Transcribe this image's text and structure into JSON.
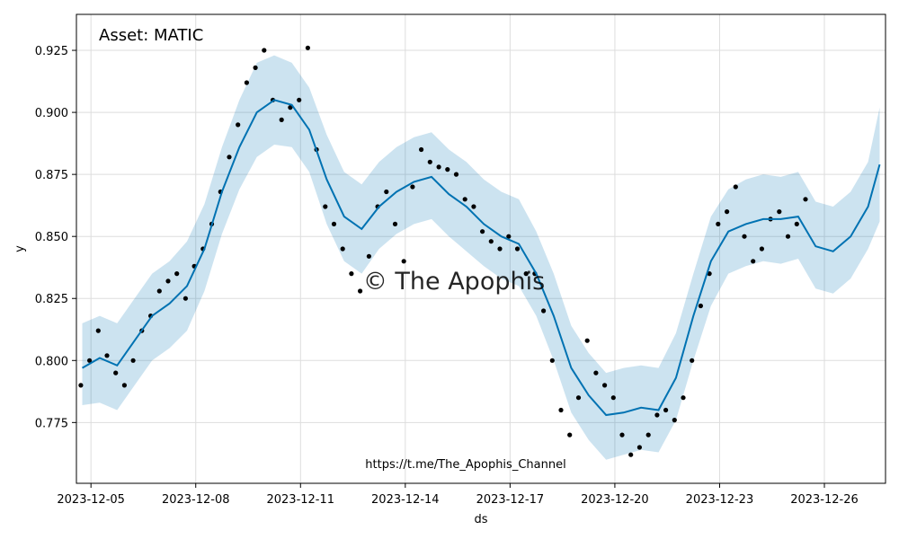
{
  "chart_data": {
    "type": "line",
    "title": "",
    "xlabel": "ds",
    "ylabel": "y",
    "annotation": "Asset: MATIC",
    "watermark": "© The Apophis",
    "footer_url": "https://t.me/The_Apophis_Channel",
    "x_range": [
      "2023-12-04T14:00",
      "2023-12-27T18:00"
    ],
    "ylim": [
      0.7505,
      0.9395
    ],
    "x_ticks": [
      {
        "label": "2023-12-05",
        "date": "2023-12-05"
      },
      {
        "label": "2023-12-08",
        "date": "2023-12-08"
      },
      {
        "label": "2023-12-11",
        "date": "2023-12-11"
      },
      {
        "label": "2023-12-14",
        "date": "2023-12-14"
      },
      {
        "label": "2023-12-17",
        "date": "2023-12-17"
      },
      {
        "label": "2023-12-20",
        "date": "2023-12-20"
      },
      {
        "label": "2023-12-23",
        "date": "2023-12-23"
      },
      {
        "label": "2023-12-26",
        "date": "2023-12-26"
      }
    ],
    "y_ticks": [
      {
        "label": "0.775",
        "value": 0.775
      },
      {
        "label": "0.800",
        "value": 0.8
      },
      {
        "label": "0.825",
        "value": 0.825
      },
      {
        "label": "0.850",
        "value": 0.85
      },
      {
        "label": "0.875",
        "value": 0.875
      },
      {
        "label": "0.900",
        "value": 0.9
      },
      {
        "label": "0.925",
        "value": 0.925
      }
    ],
    "grid": true,
    "colors": {
      "forecast_line": "#0072B2",
      "interval_fill": "#0072B2",
      "observed_points": "#000000",
      "grid": "#dddddd"
    },
    "series": [
      {
        "role": "forecast yhat",
        "x": [
          "2023-12-04T18:00",
          "2023-12-05T06:00",
          "2023-12-05T18:00",
          "2023-12-06T06:00",
          "2023-12-06T18:00",
          "2023-12-07T06:00",
          "2023-12-07T18:00",
          "2023-12-08T06:00",
          "2023-12-08T18:00",
          "2023-12-09T06:00",
          "2023-12-09T18:00",
          "2023-12-10T06:00",
          "2023-12-10T18:00",
          "2023-12-11T06:00",
          "2023-12-11T18:00",
          "2023-12-12T06:00",
          "2023-12-12T18:00",
          "2023-12-13T06:00",
          "2023-12-13T18:00",
          "2023-12-14T06:00",
          "2023-12-14T18:00",
          "2023-12-15T06:00",
          "2023-12-15T18:00",
          "2023-12-16T06:00",
          "2023-12-16T18:00",
          "2023-12-17T06:00",
          "2023-12-17T18:00",
          "2023-12-18T06:00",
          "2023-12-18T18:00",
          "2023-12-19T06:00",
          "2023-12-19T18:00",
          "2023-12-20T06:00",
          "2023-12-20T18:00",
          "2023-12-21T06:00",
          "2023-12-21T18:00",
          "2023-12-22T06:00",
          "2023-12-22T18:00",
          "2023-12-23T06:00",
          "2023-12-23T18:00",
          "2023-12-24T06:00",
          "2023-12-24T18:00",
          "2023-12-25T06:00",
          "2023-12-25T18:00",
          "2023-12-26T06:00",
          "2023-12-26T18:00",
          "2023-12-27T06:00",
          "2023-12-27T14:00"
        ],
        "y": [
          0.797,
          0.801,
          0.798,
          0.808,
          0.818,
          0.823,
          0.83,
          0.845,
          0.868,
          0.886,
          0.9,
          0.905,
          0.903,
          0.893,
          0.873,
          0.858,
          0.853,
          0.862,
          0.868,
          0.872,
          0.874,
          0.867,
          0.862,
          0.855,
          0.85,
          0.847,
          0.835,
          0.818,
          0.797,
          0.786,
          0.778,
          0.779,
          0.781,
          0.78,
          0.793,
          0.818,
          0.84,
          0.852,
          0.855,
          0.857,
          0.857,
          0.858,
          0.846,
          0.844,
          0.85,
          0.862,
          0.879
        ]
      },
      {
        "role": "uncertainty upper",
        "x": [
          "2023-12-04T18:00",
          "2023-12-05T06:00",
          "2023-12-05T18:00",
          "2023-12-06T06:00",
          "2023-12-06T18:00",
          "2023-12-07T06:00",
          "2023-12-07T18:00",
          "2023-12-08T06:00",
          "2023-12-08T18:00",
          "2023-12-09T06:00",
          "2023-12-09T18:00",
          "2023-12-10T06:00",
          "2023-12-10T18:00",
          "2023-12-11T06:00",
          "2023-12-11T18:00",
          "2023-12-12T06:00",
          "2023-12-12T18:00",
          "2023-12-13T06:00",
          "2023-12-13T18:00",
          "2023-12-14T06:00",
          "2023-12-14T18:00",
          "2023-12-15T06:00",
          "2023-12-15T18:00",
          "2023-12-16T06:00",
          "2023-12-16T18:00",
          "2023-12-17T06:00",
          "2023-12-17T18:00",
          "2023-12-18T06:00",
          "2023-12-18T18:00",
          "2023-12-19T06:00",
          "2023-12-19T18:00",
          "2023-12-20T06:00",
          "2023-12-20T18:00",
          "2023-12-21T06:00",
          "2023-12-21T18:00",
          "2023-12-22T06:00",
          "2023-12-22T18:00",
          "2023-12-23T06:00",
          "2023-12-23T18:00",
          "2023-12-24T06:00",
          "2023-12-24T18:00",
          "2023-12-25T06:00",
          "2023-12-25T18:00",
          "2023-12-26T06:00",
          "2023-12-26T18:00",
          "2023-12-27T06:00",
          "2023-12-27T14:00"
        ],
        "y": [
          0.815,
          0.818,
          0.815,
          0.825,
          0.835,
          0.84,
          0.848,
          0.863,
          0.886,
          0.905,
          0.92,
          0.923,
          0.92,
          0.91,
          0.891,
          0.876,
          0.871,
          0.88,
          0.886,
          0.89,
          0.892,
          0.885,
          0.88,
          0.873,
          0.868,
          0.865,
          0.852,
          0.835,
          0.814,
          0.803,
          0.795,
          0.797,
          0.798,
          0.797,
          0.811,
          0.835,
          0.858,
          0.869,
          0.873,
          0.875,
          0.874,
          0.876,
          0.864,
          0.862,
          0.868,
          0.88,
          0.902
        ]
      },
      {
        "role": "uncertainty lower",
        "x": [
          "2023-12-04T18:00",
          "2023-12-05T06:00",
          "2023-12-05T18:00",
          "2023-12-06T06:00",
          "2023-12-06T18:00",
          "2023-12-07T06:00",
          "2023-12-07T18:00",
          "2023-12-08T06:00",
          "2023-12-08T18:00",
          "2023-12-09T06:00",
          "2023-12-09T18:00",
          "2023-12-10T06:00",
          "2023-12-10T18:00",
          "2023-12-11T06:00",
          "2023-12-11T18:00",
          "2023-12-12T06:00",
          "2023-12-12T18:00",
          "2023-12-13T06:00",
          "2023-12-13T18:00",
          "2023-12-14T06:00",
          "2023-12-14T18:00",
          "2023-12-15T06:00",
          "2023-12-15T18:00",
          "2023-12-16T06:00",
          "2023-12-16T18:00",
          "2023-12-17T06:00",
          "2023-12-17T18:00",
          "2023-12-18T06:00",
          "2023-12-18T18:00",
          "2023-12-19T06:00",
          "2023-12-19T18:00",
          "2023-12-20T06:00",
          "2023-12-20T18:00",
          "2023-12-21T06:00",
          "2023-12-21T18:00",
          "2023-12-22T06:00",
          "2023-12-22T18:00",
          "2023-12-23T06:00",
          "2023-12-23T18:00",
          "2023-12-24T06:00",
          "2023-12-24T18:00",
          "2023-12-25T06:00",
          "2023-12-25T18:00",
          "2023-12-26T06:00",
          "2023-12-26T18:00",
          "2023-12-27T06:00",
          "2023-12-27T14:00"
        ],
        "y": [
          0.782,
          0.783,
          0.78,
          0.79,
          0.8,
          0.805,
          0.812,
          0.828,
          0.851,
          0.869,
          0.882,
          0.887,
          0.886,
          0.876,
          0.855,
          0.84,
          0.835,
          0.845,
          0.851,
          0.855,
          0.857,
          0.85,
          0.844,
          0.838,
          0.833,
          0.83,
          0.818,
          0.8,
          0.779,
          0.768,
          0.76,
          0.762,
          0.764,
          0.763,
          0.776,
          0.8,
          0.822,
          0.835,
          0.838,
          0.84,
          0.839,
          0.841,
          0.829,
          0.827,
          0.833,
          0.845,
          0.856
        ]
      },
      {
        "role": "observed y",
        "x": [
          "2023-12-04T17:00",
          "2023-12-04T23:00",
          "2023-12-05T05:00",
          "2023-12-05T11:00",
          "2023-12-05T17:00",
          "2023-12-05T23:00",
          "2023-12-06T05:00",
          "2023-12-06T11:00",
          "2023-12-06T17:00",
          "2023-12-06T23:00",
          "2023-12-07T05:00",
          "2023-12-07T11:00",
          "2023-12-07T17:00",
          "2023-12-07T23:00",
          "2023-12-08T05:00",
          "2023-12-08T11:00",
          "2023-12-08T17:00",
          "2023-12-08T23:00",
          "2023-12-09T05:00",
          "2023-12-09T11:00",
          "2023-12-09T17:00",
          "2023-12-09T23:00",
          "2023-12-10T05:00",
          "2023-12-10T11:00",
          "2023-12-10T17:00",
          "2023-12-10T23:00",
          "2023-12-11T05:00",
          "2023-12-11T11:00",
          "2023-12-11T17:00",
          "2023-12-11T23:00",
          "2023-12-12T05:00",
          "2023-12-12T11:00",
          "2023-12-12T17:00",
          "2023-12-12T23:00",
          "2023-12-13T05:00",
          "2023-12-13T11:00",
          "2023-12-13T17:00",
          "2023-12-13T23:00",
          "2023-12-14T05:00",
          "2023-12-14T11:00",
          "2023-12-14T17:00",
          "2023-12-14T23:00",
          "2023-12-15T05:00",
          "2023-12-15T11:00",
          "2023-12-15T17:00",
          "2023-12-15T23:00",
          "2023-12-16T05:00",
          "2023-12-16T11:00",
          "2023-12-16T17:00",
          "2023-12-16T23:00",
          "2023-12-17T05:00",
          "2023-12-17T11:00",
          "2023-12-17T17:00",
          "2023-12-17T23:00",
          "2023-12-18T05:00",
          "2023-12-18T11:00",
          "2023-12-18T17:00",
          "2023-12-18T23:00",
          "2023-12-19T05:00",
          "2023-12-19T11:00",
          "2023-12-19T17:00",
          "2023-12-19T23:00",
          "2023-12-20T05:00",
          "2023-12-20T11:00",
          "2023-12-20T17:00",
          "2023-12-20T23:00",
          "2023-12-21T05:00",
          "2023-12-21T11:00",
          "2023-12-21T17:00",
          "2023-12-21T23:00",
          "2023-12-22T05:00",
          "2023-12-22T11:00",
          "2023-12-22T17:00",
          "2023-12-22T23:00",
          "2023-12-23T05:00",
          "2023-12-23T11:00",
          "2023-12-23T17:00",
          "2023-12-23T23:00",
          "2023-12-24T05:00",
          "2023-12-24T11:00",
          "2023-12-24T17:00",
          "2023-12-24T23:00",
          "2023-12-25T05:00",
          "2023-12-25T11:00"
        ],
        "y": [
          0.79,
          0.8,
          0.812,
          0.802,
          0.795,
          0.79,
          0.8,
          0.812,
          0.818,
          0.828,
          0.832,
          0.835,
          0.825,
          0.838,
          0.845,
          0.855,
          0.868,
          0.882,
          0.895,
          0.912,
          0.918,
          0.925,
          0.905,
          0.897,
          0.902,
          0.905,
          0.926,
          0.885,
          0.862,
          0.855,
          0.845,
          0.835,
          0.828,
          0.842,
          0.862,
          0.868,
          0.855,
          0.84,
          0.87,
          0.885,
          0.88,
          0.878,
          0.877,
          0.875,
          0.865,
          0.862,
          0.852,
          0.848,
          0.845,
          0.85,
          0.845,
          0.835,
          0.835,
          0.82,
          0.8,
          0.78,
          0.77,
          0.785,
          0.808,
          0.795,
          0.79,
          0.785,
          0.77,
          0.762,
          0.765,
          0.77,
          0.778,
          0.78,
          0.776,
          0.785,
          0.8,
          0.822,
          0.835,
          0.855,
          0.86,
          0.87,
          0.85,
          0.84,
          0.845,
          0.857,
          0.86,
          0.85,
          0.855,
          0.865
        ]
      }
    ]
  }
}
